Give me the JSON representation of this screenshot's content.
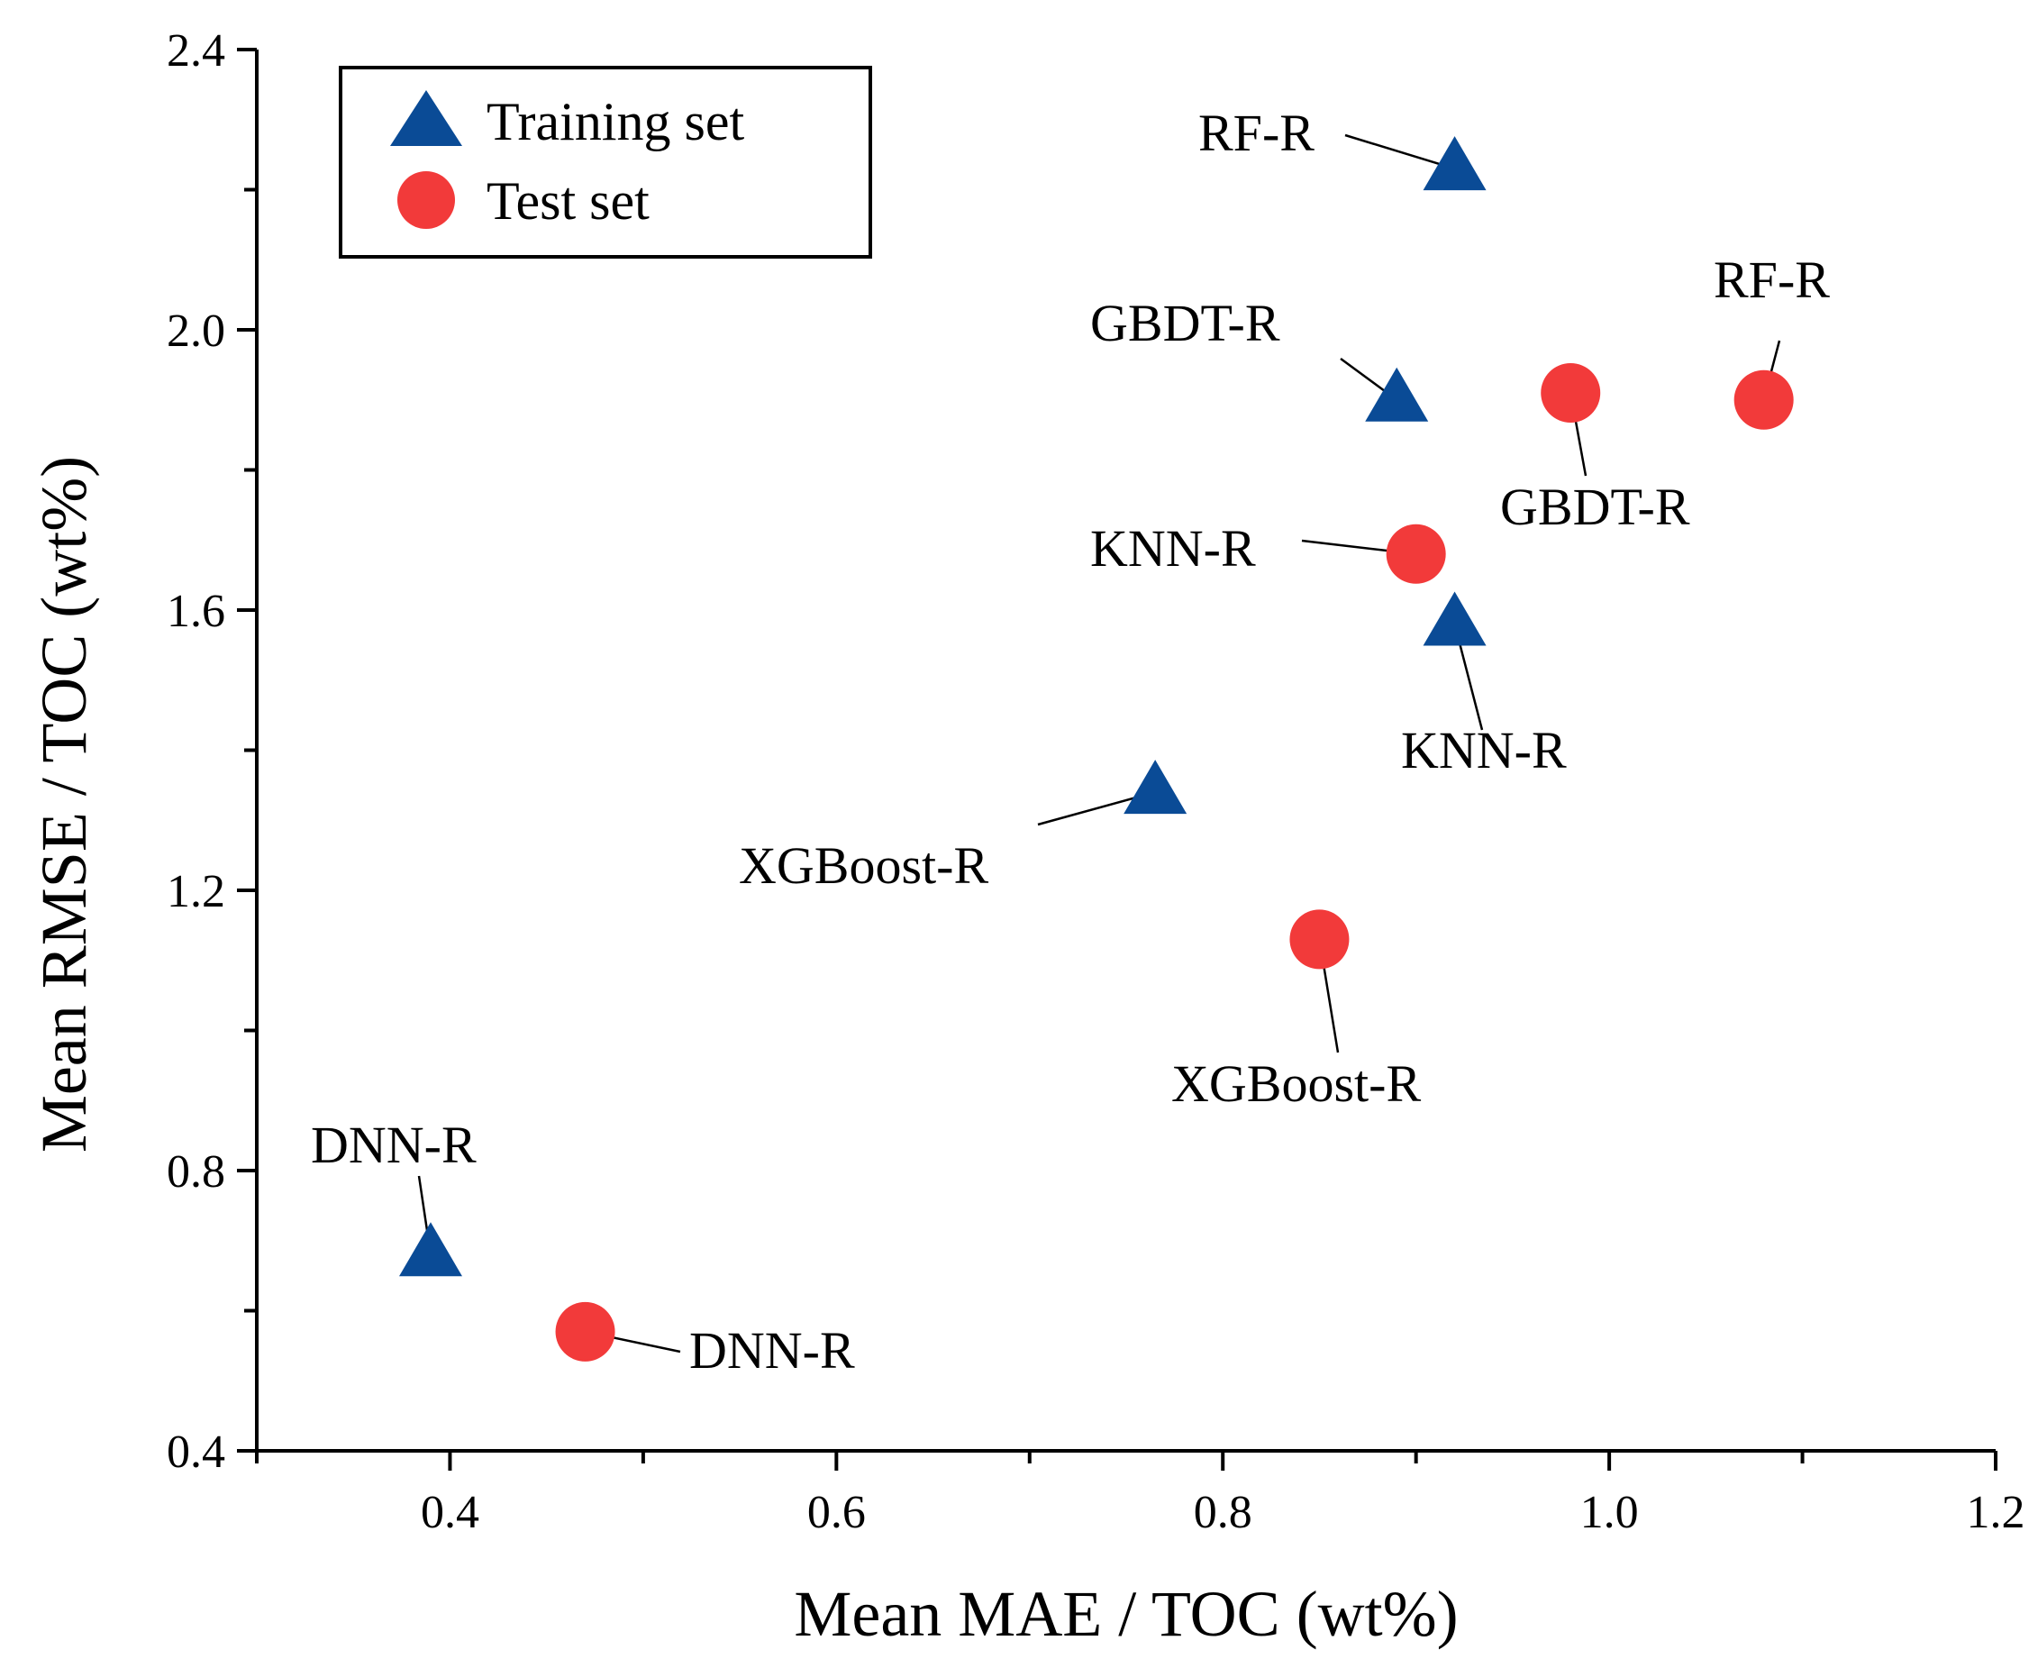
{
  "chart_data": {
    "type": "scatter",
    "xlabel": "Mean MAE / TOC (wt%)",
    "ylabel": "Mean RMSE / TOC (wt%)",
    "xlim": [
      0.3,
      1.2
    ],
    "ylim": [
      0.4,
      2.4
    ],
    "xticks": [
      0.4,
      0.6,
      0.8,
      1.0,
      1.2
    ],
    "xtick_labels": [
      "0.4",
      "0.6",
      "0.8",
      "1.0",
      "1.2"
    ],
    "yticks": [
      0.4,
      0.8,
      1.2,
      1.6,
      2.0,
      2.4
    ],
    "ytick_labels": [
      "0.4",
      "0.8",
      "1.2",
      "1.6",
      "2.0",
      "2.4"
    ],
    "legend_position": "top-left",
    "series": [
      {
        "name": "Training set",
        "marker": "triangle",
        "color": "#0a4b96",
        "points": [
          {
            "label": "RF-R",
            "x": 0.92,
            "y": 2.23
          },
          {
            "label": "GBDT-R",
            "x": 0.89,
            "y": 1.9
          },
          {
            "label": "KNN-R",
            "x": 0.92,
            "y": 1.58
          },
          {
            "label": "XGBoost-R",
            "x": 0.765,
            "y": 1.34
          },
          {
            "label": "DNN-R",
            "x": 0.39,
            "y": 0.68
          }
        ]
      },
      {
        "name": "Test set",
        "marker": "circle",
        "color": "#f23a3a",
        "points": [
          {
            "label": "RF-R",
            "x": 1.08,
            "y": 1.9
          },
          {
            "label": "GBDT-R",
            "x": 0.98,
            "y": 1.91
          },
          {
            "label": "KNN-R",
            "x": 0.9,
            "y": 1.68
          },
          {
            "label": "XGBoost-R",
            "x": 0.85,
            "y": 1.13
          },
          {
            "label": "DNN-R",
            "x": 0.47,
            "y": 0.57
          }
        ]
      }
    ]
  }
}
